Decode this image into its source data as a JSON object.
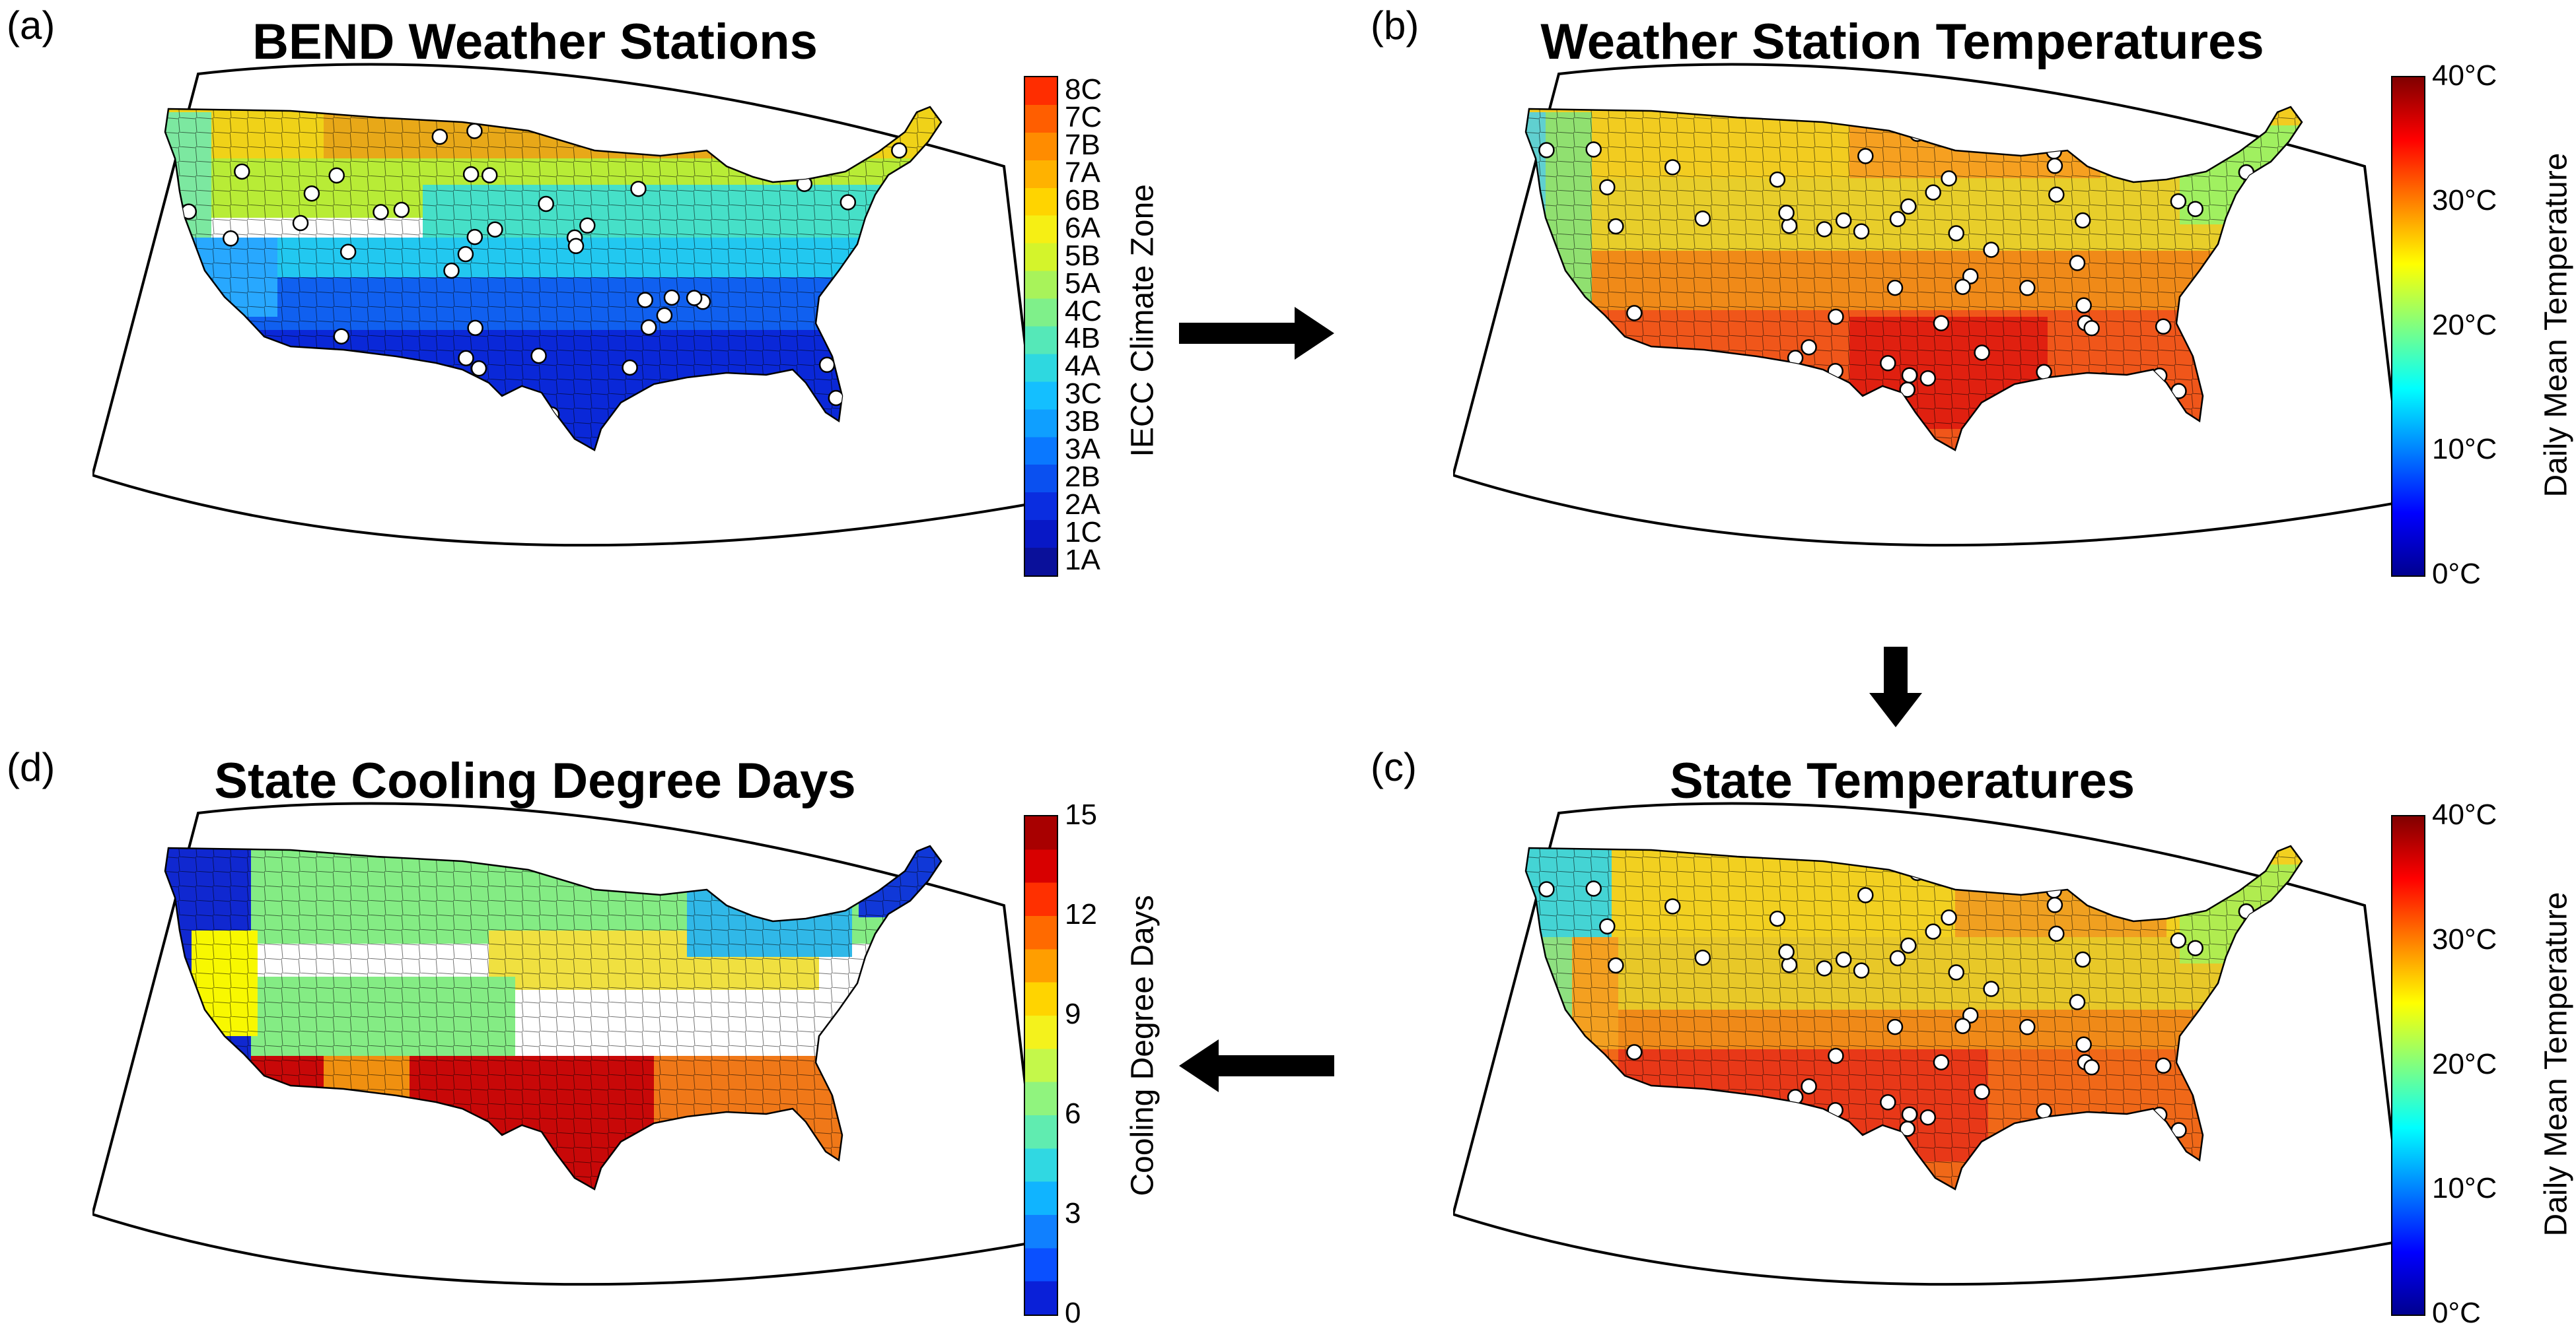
{
  "panels": {
    "a": {
      "letter": "(a)",
      "title": "BEND Weather Stations",
      "colorbar_label": "IECC Climate Zone",
      "ticks": [
        "8C",
        "7C",
        "7B",
        "7A",
        "6B",
        "6A",
        "5B",
        "5A",
        "4C",
        "4B",
        "4A",
        "3C",
        "3B",
        "3A",
        "2B",
        "2A",
        "1C",
        "1A"
      ],
      "colors": [
        "#ff2d00",
        "#ff5e00",
        "#ff8c00",
        "#ffb200",
        "#ffd400",
        "#f6ef14",
        "#d4f42b",
        "#a8f35a",
        "#7ff08a",
        "#55e8b8",
        "#2ed8e0",
        "#14bfff",
        "#0f9fff",
        "#0a78ff",
        "#0a50f0",
        "#0a2de0",
        "#0818c6",
        "#0a109a"
      ]
    },
    "b": {
      "letter": "(b)",
      "title": "Weather Station Temperatures",
      "colorbar_label": "Daily Mean Temperature",
      "ticks": [
        "40°C",
        "30°C",
        "20°C",
        "10°C",
        "0°C"
      ]
    },
    "c": {
      "letter": "(c)",
      "title": "State Temperatures",
      "colorbar_label": "Daily Mean Temperature",
      "ticks": [
        "40°C",
        "30°C",
        "20°C",
        "10°C",
        "0°C"
      ]
    },
    "d": {
      "letter": "(d)",
      "title": "State Cooling Degree Days",
      "colorbar_label": "Cooling Degree Days",
      "ticks": [
        "15",
        "12",
        "9",
        "6",
        "3",
        "0"
      ]
    }
  },
  "colors": {
    "jet_stops": [
      "#00008f",
      "#0000ff",
      "#0080ff",
      "#00ffff",
      "#80ff80",
      "#ffff00",
      "#ff8000",
      "#ff0000",
      "#800000"
    ],
    "map_frame": "#000000",
    "station_fill": "#ffffff"
  },
  "arrows": [
    "right-arrow-icon",
    "down-arrow-icon",
    "left-arrow-icon"
  ]
}
